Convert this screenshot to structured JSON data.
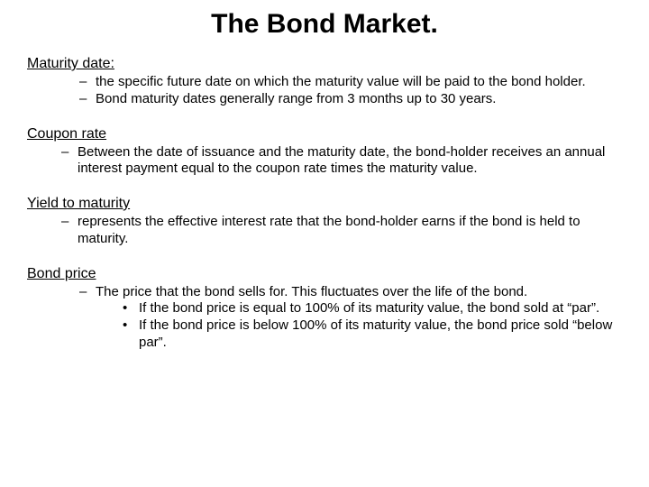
{
  "title": "The Bond Market.",
  "sections": {
    "maturity": {
      "heading": "Maturity date:",
      "items": [
        "the specific future date on which the maturity value will be paid to the bond holder.",
        "Bond maturity dates generally range from 3 months up to 30 years."
      ]
    },
    "coupon": {
      "heading": "Coupon rate",
      "items": [
        "Between the date of issuance and the maturity date, the bond-holder receives an annual interest payment equal to the coupon rate times the maturity value."
      ]
    },
    "ytm": {
      "heading": "Yield to maturity",
      "items": [
        "represents the effective interest rate that the bond-holder earns if the bond is held to maturity."
      ]
    },
    "price": {
      "heading": "Bond price",
      "items": [
        "The price that the bond sells for.  This fluctuates over the life of the bond."
      ],
      "subitems": [
        "If the bond price is equal to 100% of its maturity value, the bond sold at “par”.",
        " If the bond price is below 100% of its maturity value, the bond price sold “below par”."
      ]
    }
  }
}
